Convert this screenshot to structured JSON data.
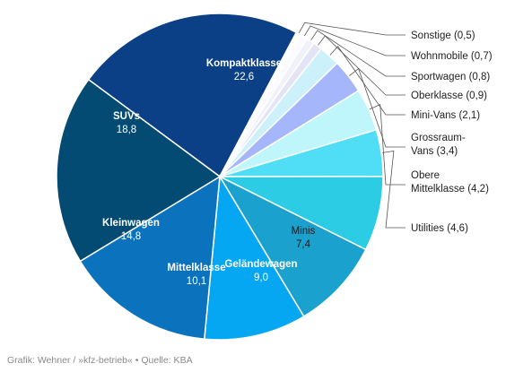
{
  "chart_data": {
    "type": "pie",
    "title": "",
    "segments": [
      {
        "name": "Kompaktklasse",
        "value": 22.6,
        "value_label": "22,6",
        "color": "#0b3f86",
        "label_color": "#ffffff",
        "inside": true
      },
      {
        "name": "Sonstige",
        "value": 0.5,
        "value_label": "(0,5)",
        "color": "#ffffff",
        "inside": false
      },
      {
        "name": "Wohnmobile",
        "value": 0.7,
        "value_label": "(0,7)",
        "color": "#fafaff",
        "inside": false
      },
      {
        "name": "Sportwagen",
        "value": 0.8,
        "value_label": "(0,8)",
        "color": "#f1f1fb",
        "inside": false
      },
      {
        "name": "Oberklasse",
        "value": 0.9,
        "value_label": "(0,9)",
        "color": "#e3e4f6",
        "inside": false
      },
      {
        "name": "Mini-Vans",
        "value": 2.1,
        "value_label": "(2,1)",
        "color": "#cdf1fa",
        "inside": false
      },
      {
        "name": "Grossraum-Vans",
        "value": 3.4,
        "value_label": "(3,4)",
        "color": "#a6b6fb",
        "inside": false,
        "lines": [
          "Grossraum-",
          "Vans (3,4)"
        ]
      },
      {
        "name": "Obere Mittelklasse",
        "value": 4.2,
        "value_label": "(4,2)",
        "color": "#bff6fb",
        "inside": false,
        "lines": [
          "Obere",
          "Mittelklasse (4,2)"
        ]
      },
      {
        "name": "Utilities",
        "value": 4.6,
        "value_label": "(4,6)",
        "color": "#50def6",
        "inside": false
      },
      {
        "name": "Minis",
        "value": 7.4,
        "value_label": "7,4",
        "color": "#2ccde4",
        "label_color": "#1a1a1a",
        "inside": true
      },
      {
        "name": "Geländewagen",
        "value": 9.0,
        "value_label": "9,0",
        "color": "#1aa1cd",
        "label_color": "#ffffff",
        "inside": true
      },
      {
        "name": "Mittelklasse",
        "value": 10.1,
        "value_label": "10,1",
        "color": "#05a7f3",
        "label_color": "#ffffff",
        "inside": true
      },
      {
        "name": "Kleinwagen",
        "value": 14.8,
        "value_label": "14,8",
        "color": "#0b72bd",
        "label_color": "#ffffff",
        "inside": true
      },
      {
        "name": "SUVs",
        "value": 18.8,
        "value_label": "18,8",
        "color": "#034b72",
        "label_color": "#ffffff",
        "inside": true
      }
    ]
  },
  "source": "Grafik: Wehner / »kfz-betrieb« • Quelle: KBA"
}
